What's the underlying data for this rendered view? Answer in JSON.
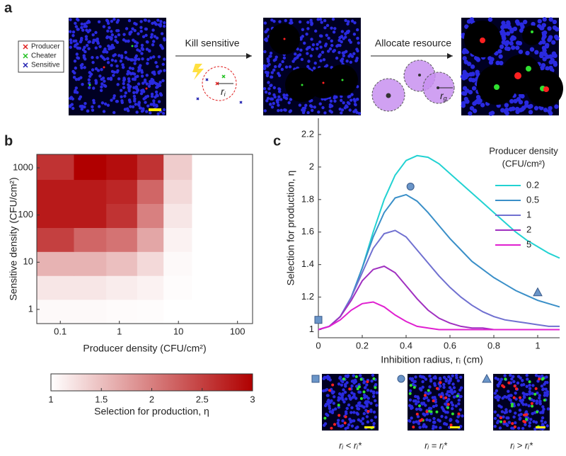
{
  "panel_labels": [
    "a",
    "b",
    "c"
  ],
  "panel_a": {
    "legend": [
      "Producer",
      "Cheater",
      "Sensitive"
    ],
    "steps": [
      "Kill sensitive",
      "Allocate resource"
    ],
    "radius_labels": [
      [
        "r",
        "i"
      ],
      [
        "r",
        "g"
      ]
    ]
  },
  "chart_data": [
    {
      "type": "heatmap",
      "xlabel": "Producer density (CFU/cm²)",
      "ylabel": "Sensitive density (CFU/cm²)",
      "xscale": "log",
      "yscale": "log",
      "xlim": [
        0.04,
        180
      ],
      "ylim": [
        0.5,
        1930
      ],
      "xticks": [
        0.1,
        1,
        10,
        100
      ],
      "yticks": [
        1,
        10,
        100,
        1000
      ],
      "xbins": [
        0.04,
        0.17,
        0.6,
        2,
        5.6,
        17,
        57,
        180
      ],
      "ybins": [
        0.5,
        1.62,
        5.2,
        16.8,
        54,
        175,
        565,
        1930
      ],
      "z": [
        [
          1.05,
          1.05,
          1.03,
          1.02,
          1.0,
          1.0,
          1.0
        ],
        [
          1.2,
          1.2,
          1.15,
          1.1,
          1.02,
          1.0,
          1.0
        ],
        [
          1.6,
          1.6,
          1.5,
          1.3,
          1.05,
          1.0,
          1.0
        ],
        [
          2.5,
          2.2,
          2.1,
          1.7,
          1.1,
          1.0,
          1.0
        ],
        [
          2.8,
          2.8,
          2.6,
          2.0,
          1.2,
          1.0,
          1.0
        ],
        [
          2.8,
          2.8,
          2.7,
          2.2,
          1.3,
          1.0,
          1.0
        ],
        [
          2.6,
          3.0,
          2.9,
          2.6,
          1.4,
          1.0,
          1.0
        ]
      ],
      "colorscale": [
        "#ffffff",
        "#b00000"
      ],
      "colorbar": {
        "label": "Selection for production, η",
        "lim": [
          1,
          3
        ],
        "ticks": [
          1,
          1.5,
          2,
          2.5,
          3
        ]
      }
    },
    {
      "type": "line",
      "xlabel": "Inhibition radius, rᵢ (cm)",
      "ylabel": "Selection for production, η",
      "xlim": [
        0,
        1.1
      ],
      "ylim": [
        0.95,
        2.3
      ],
      "xticks": [
        0,
        0.2,
        0.4,
        0.6,
        0.8,
        1
      ],
      "yticks": [
        1,
        1.2,
        1.4,
        1.6,
        1.8,
        2,
        2.2
      ],
      "legend_title": [
        "Producer density",
        "(CFU/cm²)"
      ],
      "legend": "upper right",
      "x": [
        0,
        0.05,
        0.1,
        0.15,
        0.2,
        0.25,
        0.3,
        0.35,
        0.4,
        0.45,
        0.5,
        0.55,
        0.6,
        0.65,
        0.7,
        0.75,
        0.8,
        0.85,
        0.9,
        0.95,
        1,
        1.05,
        1.1
      ],
      "series": [
        {
          "name": "0.2",
          "color": "#22d2d2",
          "values": [
            1.0,
            1.02,
            1.08,
            1.2,
            1.38,
            1.6,
            1.8,
            1.95,
            2.04,
            2.07,
            2.06,
            2.02,
            1.96,
            1.9,
            1.84,
            1.78,
            1.72,
            1.66,
            1.6,
            1.55,
            1.51,
            1.47,
            1.44
          ]
        },
        {
          "name": "0.5",
          "color": "#3a8fc8",
          "values": [
            1.0,
            1.02,
            1.08,
            1.2,
            1.38,
            1.57,
            1.72,
            1.81,
            1.83,
            1.79,
            1.72,
            1.64,
            1.56,
            1.49,
            1.42,
            1.37,
            1.32,
            1.28,
            1.24,
            1.21,
            1.18,
            1.16,
            1.14
          ]
        },
        {
          "name": "1",
          "color": "#7070d0",
          "values": [
            1.0,
            1.02,
            1.08,
            1.2,
            1.35,
            1.5,
            1.59,
            1.61,
            1.57,
            1.49,
            1.41,
            1.33,
            1.26,
            1.2,
            1.15,
            1.11,
            1.08,
            1.06,
            1.05,
            1.04,
            1.03,
            1.02,
            1.02
          ]
        },
        {
          "name": "2",
          "color": "#a030c0",
          "values": [
            1.0,
            1.02,
            1.08,
            1.18,
            1.3,
            1.37,
            1.39,
            1.35,
            1.27,
            1.19,
            1.12,
            1.07,
            1.04,
            1.02,
            1.01,
            1.01,
            1.0,
            1.0,
            1.0,
            1.0,
            1.0,
            1.0,
            1.0
          ]
        },
        {
          "name": "5",
          "color": "#e020d0",
          "values": [
            1.0,
            1.02,
            1.06,
            1.12,
            1.16,
            1.17,
            1.14,
            1.09,
            1.05,
            1.02,
            1.01,
            1.0,
            1.0,
            1.0,
            1.0,
            1.0,
            1.0,
            1.0,
            1.0,
            1.0,
            1.0,
            1.0,
            1.0
          ]
        }
      ],
      "markers": [
        {
          "shape": "square",
          "x": 0,
          "y": 1.06
        },
        {
          "shape": "circle",
          "x": 0.42,
          "y": 1.88
        },
        {
          "shape": "triangle",
          "x": 1,
          "y": 1.23
        }
      ],
      "inset_labels": [
        "rᵢ < rᵢ*",
        "rᵢ = rᵢ*",
        "rᵢ > rᵢ*"
      ]
    }
  ]
}
